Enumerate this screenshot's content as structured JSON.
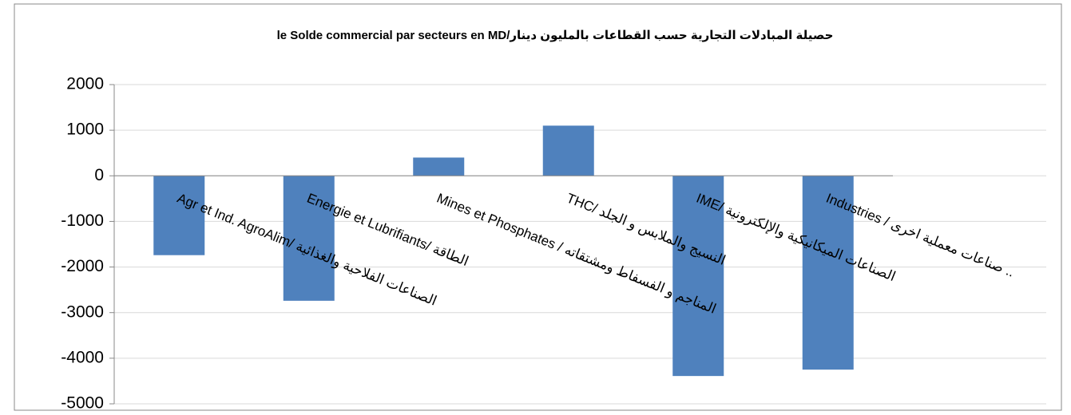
{
  "chart_data": {
    "type": "bar",
    "title": "le Solde commercial par secteurs en MD/حصيلة المبادلات التجارية حسب القطاعات بالمليون دينار",
    "categories": [
      "Agr et Ind. AgroAlim/ الصناعات الفلاحية والغذائية",
      "Energie et Lubrifiants/ الطاقة",
      "Mines et Phosphates / المناجم و الفسفاط ومشتقاته",
      "THC/ النسيج والملابس و الجلد",
      "IME/ الصناعات الميكانيكية والإلكترونية",
      "Industries / صناعات معملية اخرى .."
    ],
    "values": [
      -1740,
      -2740,
      400,
      1100,
      -4390,
      -4250
    ],
    "color": "#4f81bd",
    "ylim": [
      -5000,
      2000
    ],
    "yticks": [
      -5000,
      -4000,
      -3000,
      -2000,
      -1000,
      0,
      1000,
      2000
    ],
    "grid": true
  }
}
